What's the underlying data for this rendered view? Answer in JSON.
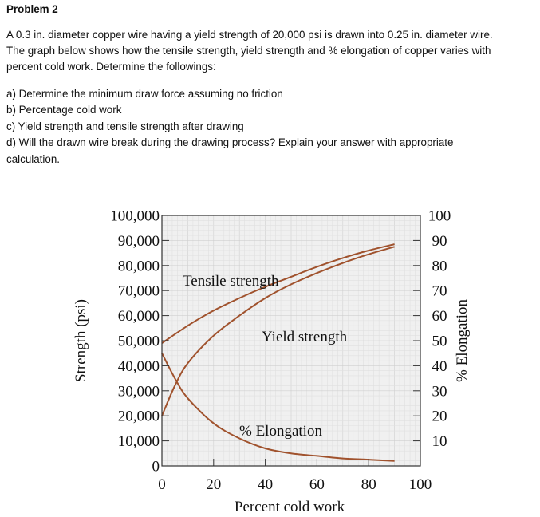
{
  "problem": {
    "title": "Problem 2",
    "statement": [
      "A 0.3 in. diameter copper wire having a yield strength of 20,000 psi is drawn into 0.25 in. diameter wire.",
      "The graph below shows how the tensile strength, yield strength and % elongation of copper varies with",
      "percent cold work. Determine the followings:"
    ],
    "questions": [
      "a) Determine the minimum draw force assuming no friction",
      "b) Percentage cold work",
      "c) Yield strength and tensile strength after drawing",
      "d) Will the drawn wire break during the drawing process? Explain your answer with appropriate",
      "calculation."
    ]
  },
  "chart_data": {
    "type": "line",
    "xlabel": "Percent cold work",
    "ylabel_left": "Strength (psi)",
    "ylabel_right": "% Elongation",
    "xlim": [
      0,
      100
    ],
    "ylim_left": [
      0,
      100000
    ],
    "ylim_right": [
      0,
      100
    ],
    "x_ticks": [
      "0",
      "20",
      "40",
      "60",
      "80",
      "100"
    ],
    "y_ticks_left": [
      "0",
      "10,000",
      "20,000",
      "30,000",
      "40,000",
      "50,000",
      "60,000",
      "70,000",
      "80,000",
      "90,000",
      "100,000"
    ],
    "y_ticks_right": [
      "10",
      "20",
      "30",
      "40",
      "50",
      "60",
      "70",
      "80",
      "90",
      "100"
    ],
    "grid": true,
    "line_color": "#a0522d",
    "series": [
      {
        "name": "Tensile strength",
        "axis": "left",
        "x": [
          0,
          10,
          20,
          30,
          40,
          50,
          60,
          70,
          80,
          90
        ],
        "y": [
          49000,
          56000,
          62000,
          67000,
          71500,
          75500,
          79500,
          83000,
          86000,
          88500
        ]
      },
      {
        "name": "Yield strength",
        "axis": "left",
        "x": [
          0,
          5,
          10,
          20,
          30,
          40,
          50,
          60,
          70,
          80,
          90
        ],
        "y": [
          20000,
          32000,
          41000,
          52000,
          60000,
          67000,
          72500,
          77000,
          81000,
          84500,
          87500
        ]
      },
      {
        "name": "% Elongation",
        "axis": "right",
        "x": [
          0,
          5,
          10,
          20,
          30,
          40,
          50,
          60,
          70,
          80,
          90
        ],
        "y": [
          45,
          35,
          27,
          17,
          11,
          7,
          5,
          4,
          3,
          2.5,
          2
        ]
      }
    ]
  }
}
